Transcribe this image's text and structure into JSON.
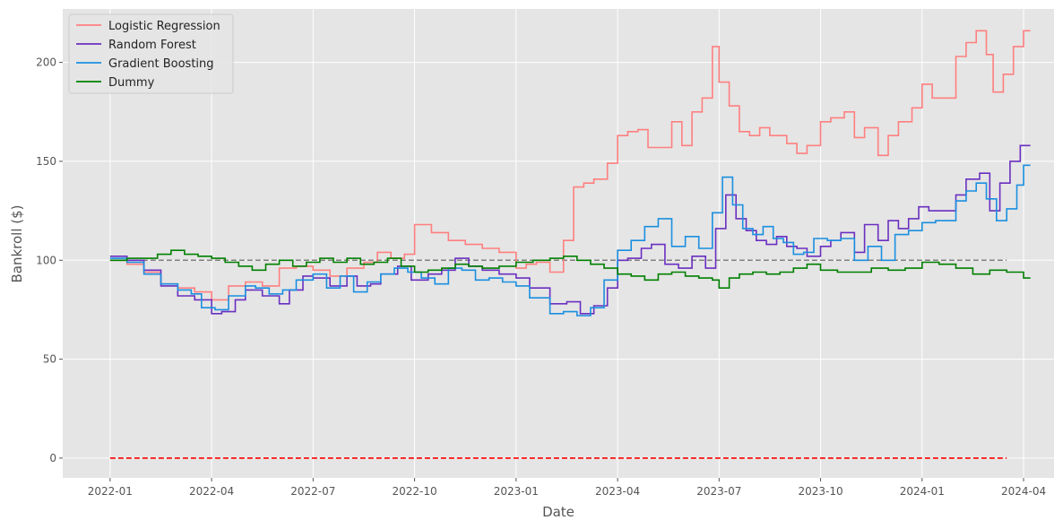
{
  "chart_data": {
    "type": "line",
    "step": true,
    "xlabel": "Date",
    "ylabel": "Bankroll ($)",
    "x_ticks": [
      {
        "label": "2022-01",
        "t": 0
      },
      {
        "label": "2022-04",
        "t": 3
      },
      {
        "label": "2022-07",
        "t": 6
      },
      {
        "label": "2022-10",
        "t": 9
      },
      {
        "label": "2023-01",
        "t": 12
      },
      {
        "label": "2023-04",
        "t": 15
      },
      {
        "label": "2023-07",
        "t": 18
      },
      {
        "label": "2023-10",
        "t": 21
      },
      {
        "label": "2024-01",
        "t": 24
      },
      {
        "label": "2024-04",
        "t": 27
      }
    ],
    "xlim": [
      -1.4,
      27.9
    ],
    "y_ticks": [
      0,
      50,
      100,
      150,
      200
    ],
    "ylim": [
      -10,
      227
    ],
    "grid": true,
    "legend_location": "upper-left",
    "reference_lines": [
      {
        "name": "start-bankroll",
        "y": 100,
        "x_range": [
          0,
          26.5
        ],
        "color": "#808080",
        "style": "dashed"
      },
      {
        "name": "zero-bankroll",
        "y": 0,
        "x_range": [
          0,
          26.5
        ],
        "color": "#ff0000",
        "style": "dashed"
      }
    ],
    "series": [
      {
        "name": "Logistic Regression",
        "color": "#ff7f7f",
        "points": [
          [
            0,
            100
          ],
          [
            0.5,
            98
          ],
          [
            1,
            94
          ],
          [
            1.5,
            88
          ],
          [
            2,
            86
          ],
          [
            2.5,
            84
          ],
          [
            3,
            80
          ],
          [
            3.5,
            87
          ],
          [
            4,
            89
          ],
          [
            4.5,
            87
          ],
          [
            5,
            96
          ],
          [
            5.5,
            97
          ],
          [
            6,
            95
          ],
          [
            6.5,
            92
          ],
          [
            7,
            96
          ],
          [
            7.5,
            99
          ],
          [
            7.9,
            104
          ],
          [
            8.3,
            101
          ],
          [
            8.7,
            103
          ],
          [
            9,
            118
          ],
          [
            9.5,
            114
          ],
          [
            10,
            110
          ],
          [
            10.5,
            108
          ],
          [
            11,
            106
          ],
          [
            11.5,
            104
          ],
          [
            12,
            96
          ],
          [
            12.3,
            98
          ],
          [
            12.6,
            99
          ],
          [
            13,
            94
          ],
          [
            13.4,
            110
          ],
          [
            13.7,
            137
          ],
          [
            14,
            139
          ],
          [
            14.3,
            141
          ],
          [
            14.7,
            149
          ],
          [
            15,
            163
          ],
          [
            15.3,
            165
          ],
          [
            15.6,
            166
          ],
          [
            15.9,
            157
          ],
          [
            16.6,
            170
          ],
          [
            16.9,
            158
          ],
          [
            17.2,
            175
          ],
          [
            17.5,
            182
          ],
          [
            17.8,
            208
          ],
          [
            18,
            190
          ],
          [
            18.3,
            178
          ],
          [
            18.6,
            165
          ],
          [
            18.9,
            163
          ],
          [
            19.2,
            167
          ],
          [
            19.5,
            163
          ],
          [
            20,
            159
          ],
          [
            20.3,
            154
          ],
          [
            20.6,
            158
          ],
          [
            21,
            170
          ],
          [
            21.3,
            172
          ],
          [
            21.7,
            175
          ],
          [
            22,
            162
          ],
          [
            22.3,
            167
          ],
          [
            22.7,
            153
          ],
          [
            23,
            163
          ],
          [
            23.3,
            170
          ],
          [
            23.7,
            177
          ],
          [
            24,
            189
          ],
          [
            24.3,
            182
          ],
          [
            25,
            203
          ],
          [
            25.3,
            210
          ],
          [
            25.6,
            216
          ],
          [
            25.9,
            204
          ],
          [
            26.1,
            185
          ],
          [
            26.4,
            194
          ],
          [
            26.7,
            208
          ],
          [
            27,
            216
          ],
          [
            27.2,
            216
          ]
        ]
      },
      {
        "name": "Random Forest",
        "color": "#6a2fc0",
        "points": [
          [
            0,
            102
          ],
          [
            0.5,
            100
          ],
          [
            1,
            95
          ],
          [
            1.5,
            87
          ],
          [
            2,
            82
          ],
          [
            2.5,
            80
          ],
          [
            3,
            73
          ],
          [
            3.3,
            74
          ],
          [
            3.7,
            80
          ],
          [
            4,
            85
          ],
          [
            4.5,
            82
          ],
          [
            5,
            78
          ],
          [
            5.3,
            85
          ],
          [
            5.7,
            92
          ],
          [
            6,
            91
          ],
          [
            6.5,
            87
          ],
          [
            7,
            92
          ],
          [
            7.3,
            87
          ],
          [
            7.7,
            88
          ],
          [
            8,
            93
          ],
          [
            8.5,
            97
          ],
          [
            8.9,
            90
          ],
          [
            9.4,
            93
          ],
          [
            9.8,
            95
          ],
          [
            10.2,
            101
          ],
          [
            10.6,
            97
          ],
          [
            11,
            95
          ],
          [
            11.5,
            93
          ],
          [
            12,
            91
          ],
          [
            12.4,
            86
          ],
          [
            13,
            78
          ],
          [
            13.5,
            79
          ],
          [
            13.9,
            73
          ],
          [
            14.3,
            77
          ],
          [
            14.7,
            86
          ],
          [
            15,
            100
          ],
          [
            15.3,
            101
          ],
          [
            15.7,
            106
          ],
          [
            16,
            108
          ],
          [
            16.4,
            98
          ],
          [
            16.8,
            96
          ],
          [
            17.2,
            102
          ],
          [
            17.6,
            96
          ],
          [
            17.9,
            116
          ],
          [
            18.2,
            133
          ],
          [
            18.5,
            121
          ],
          [
            18.8,
            115
          ],
          [
            19.1,
            110
          ],
          [
            19.4,
            108
          ],
          [
            19.7,
            112
          ],
          [
            20,
            107
          ],
          [
            20.3,
            106
          ],
          [
            20.6,
            102
          ],
          [
            21,
            107
          ],
          [
            21.3,
            110
          ],
          [
            21.6,
            114
          ],
          [
            22,
            104
          ],
          [
            22.3,
            118
          ],
          [
            22.7,
            110
          ],
          [
            23,
            120
          ],
          [
            23.3,
            116
          ],
          [
            23.6,
            121
          ],
          [
            23.9,
            127
          ],
          [
            24.2,
            125
          ],
          [
            25,
            133
          ],
          [
            25.3,
            141
          ],
          [
            25.7,
            144
          ],
          [
            26,
            125
          ],
          [
            26.3,
            139
          ],
          [
            26.6,
            150
          ],
          [
            26.9,
            158
          ],
          [
            27.2,
            158
          ]
        ]
      },
      {
        "name": "Gradient Boosting",
        "color": "#1a8fe0",
        "points": [
          [
            0,
            101
          ],
          [
            0.5,
            99
          ],
          [
            1,
            93
          ],
          [
            1.5,
            88
          ],
          [
            2,
            85
          ],
          [
            2.4,
            83
          ],
          [
            2.7,
            76
          ],
          [
            3.1,
            75
          ],
          [
            3.5,
            82
          ],
          [
            4,
            87
          ],
          [
            4.3,
            86
          ],
          [
            4.7,
            83
          ],
          [
            5.1,
            85
          ],
          [
            5.5,
            90
          ],
          [
            6,
            93
          ],
          [
            6.4,
            86
          ],
          [
            6.8,
            92
          ],
          [
            7.2,
            84
          ],
          [
            7.6,
            89
          ],
          [
            8,
            93
          ],
          [
            8.4,
            96
          ],
          [
            8.8,
            94
          ],
          [
            9.2,
            91
          ],
          [
            9.6,
            88
          ],
          [
            10,
            96
          ],
          [
            10.4,
            95
          ],
          [
            10.8,
            90
          ],
          [
            11.2,
            91
          ],
          [
            11.6,
            89
          ],
          [
            12,
            87
          ],
          [
            12.4,
            81
          ],
          [
            13,
            73
          ],
          [
            13.4,
            74
          ],
          [
            13.8,
            72
          ],
          [
            14.2,
            76
          ],
          [
            14.6,
            90
          ],
          [
            15,
            105
          ],
          [
            15.4,
            110
          ],
          [
            15.8,
            117
          ],
          [
            16.2,
            121
          ],
          [
            16.6,
            107
          ],
          [
            17,
            112
          ],
          [
            17.4,
            106
          ],
          [
            17.8,
            124
          ],
          [
            18.1,
            142
          ],
          [
            18.4,
            128
          ],
          [
            18.7,
            116
          ],
          [
            19,
            113
          ],
          [
            19.3,
            117
          ],
          [
            19.6,
            111
          ],
          [
            19.9,
            109
          ],
          [
            20.2,
            103
          ],
          [
            20.5,
            104
          ],
          [
            20.8,
            111
          ],
          [
            21.2,
            110
          ],
          [
            21.6,
            111
          ],
          [
            22,
            100
          ],
          [
            22.4,
            107
          ],
          [
            22.8,
            100
          ],
          [
            23.2,
            113
          ],
          [
            23.6,
            115
          ],
          [
            24,
            119
          ],
          [
            24.4,
            120
          ],
          [
            25,
            130
          ],
          [
            25.3,
            135
          ],
          [
            25.6,
            139
          ],
          [
            25.9,
            131
          ],
          [
            26.2,
            120
          ],
          [
            26.5,
            126
          ],
          [
            26.8,
            138
          ],
          [
            27,
            148
          ],
          [
            27.2,
            148
          ]
        ]
      },
      {
        "name": "Dummy",
        "color": "#008000",
        "points": [
          [
            0,
            100
          ],
          [
            0.5,
            101
          ],
          [
            1,
            101
          ],
          [
            1.4,
            103
          ],
          [
            1.8,
            105
          ],
          [
            2.2,
            103
          ],
          [
            2.6,
            102
          ],
          [
            3,
            101
          ],
          [
            3.4,
            99
          ],
          [
            3.8,
            97
          ],
          [
            4.2,
            95
          ],
          [
            4.6,
            98
          ],
          [
            5,
            100
          ],
          [
            5.4,
            97
          ],
          [
            5.8,
            99
          ],
          [
            6.2,
            101
          ],
          [
            6.6,
            99
          ],
          [
            7,
            101
          ],
          [
            7.4,
            98
          ],
          [
            7.8,
            99
          ],
          [
            8.2,
            101
          ],
          [
            8.6,
            97
          ],
          [
            9,
            94
          ],
          [
            9.4,
            95
          ],
          [
            9.8,
            96
          ],
          [
            10.2,
            98
          ],
          [
            10.6,
            97
          ],
          [
            11,
            96
          ],
          [
            11.5,
            97
          ],
          [
            12,
            99
          ],
          [
            12.5,
            100
          ],
          [
            13,
            101
          ],
          [
            13.4,
            102
          ],
          [
            13.8,
            100
          ],
          [
            14.2,
            98
          ],
          [
            14.6,
            96
          ],
          [
            15,
            93
          ],
          [
            15.4,
            92
          ],
          [
            15.8,
            90
          ],
          [
            16.2,
            93
          ],
          [
            16.6,
            94
          ],
          [
            17,
            92
          ],
          [
            17.4,
            91
          ],
          [
            17.8,
            90
          ],
          [
            18,
            86
          ],
          [
            18.3,
            91
          ],
          [
            18.6,
            93
          ],
          [
            19,
            94
          ],
          [
            19.4,
            93
          ],
          [
            19.8,
            94
          ],
          [
            20.2,
            96
          ],
          [
            20.6,
            98
          ],
          [
            21,
            95
          ],
          [
            21.5,
            94
          ],
          [
            22,
            94
          ],
          [
            22.5,
            96
          ],
          [
            23,
            95
          ],
          [
            23.5,
            96
          ],
          [
            24,
            99
          ],
          [
            24.5,
            98
          ],
          [
            25,
            96
          ],
          [
            25.5,
            93
          ],
          [
            26,
            95
          ],
          [
            26.5,
            94
          ],
          [
            27,
            91
          ],
          [
            27.2,
            91
          ]
        ]
      }
    ]
  }
}
